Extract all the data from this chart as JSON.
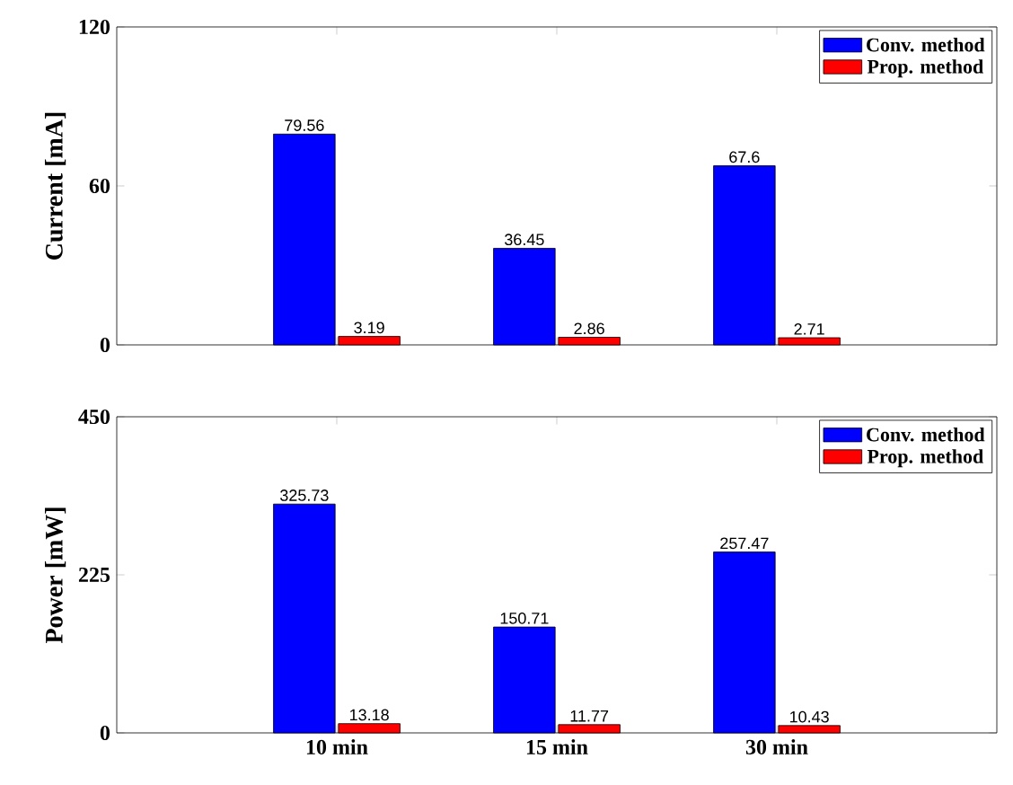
{
  "chart_data": [
    {
      "type": "bar",
      "ylabel": "Current [mA]",
      "categories": [
        null,
        null,
        null
      ],
      "ylim": [
        0,
        120
      ],
      "yticks": [
        0,
        60,
        120
      ],
      "legend": "top right",
      "data_labels": true,
      "series": [
        {
          "name": "Conv. method",
          "color": "#0000ff",
          "values": [
            79.56,
            36.45,
            67.6
          ]
        },
        {
          "name": "Prop. method",
          "color": "#ff0000",
          "values": [
            3.19,
            2.86,
            2.71
          ]
        }
      ]
    },
    {
      "type": "bar",
      "ylabel": "Power [mW]",
      "categories": [
        "10 min",
        "15 min",
        "30 min"
      ],
      "ylim": [
        0,
        450
      ],
      "yticks": [
        0,
        225,
        450
      ],
      "legend": "top right",
      "data_labels": true,
      "series": [
        {
          "name": "Conv. method",
          "color": "#0000ff",
          "values": [
            325.73,
            150.71,
            257.47
          ]
        },
        {
          "name": "Prop. method",
          "color": "#ff0000",
          "values": [
            13.18,
            11.77,
            10.43
          ]
        }
      ]
    }
  ]
}
